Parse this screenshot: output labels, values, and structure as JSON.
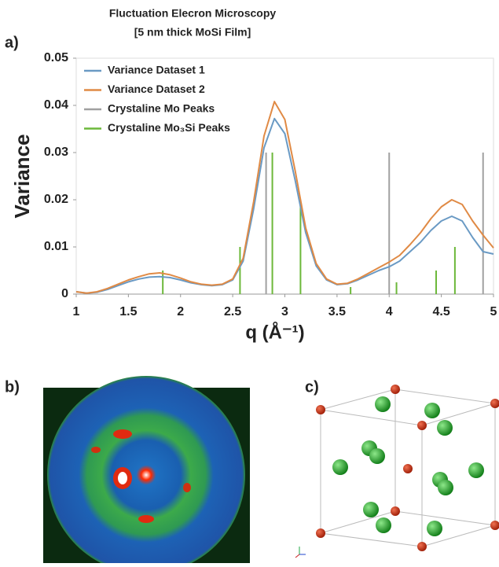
{
  "panel_labels": [
    "a)",
    "b)",
    "c)"
  ],
  "chart_data": {
    "type": "line",
    "title": [
      "Fluctuation Elecron Microscopy",
      "[5 nm thick MoSi Film]"
    ],
    "x_label": "q (Å⁻¹)",
    "y_label": "Variance",
    "xlim": [
      1,
      5
    ],
    "xticks": [
      1,
      1.5,
      2,
      2.5,
      3,
      3.5,
      4,
      4.5,
      5
    ],
    "ylim": [
      0,
      0.05
    ],
    "yticks": [
      0,
      0.01,
      0.02,
      0.03,
      0.04,
      0.05
    ],
    "legend": "upper left",
    "series": [
      {
        "name": "Variance Dataset 1",
        "color": "#6a9ac4",
        "style": "line",
        "x": [
          1.0,
          1.1,
          1.2,
          1.3,
          1.4,
          1.5,
          1.6,
          1.7,
          1.8,
          1.9,
          2.0,
          2.1,
          2.2,
          2.3,
          2.4,
          2.5,
          2.6,
          2.7,
          2.8,
          2.9,
          3.0,
          3.1,
          3.2,
          3.3,
          3.4,
          3.5,
          3.6,
          3.7,
          3.8,
          3.9,
          4.0,
          4.1,
          4.2,
          4.3,
          4.4,
          4.5,
          4.6,
          4.7,
          4.8,
          4.9,
          5.0
        ],
        "values": [
          0.0005,
          0.0002,
          0.0004,
          0.001,
          0.0018,
          0.0026,
          0.0032,
          0.0036,
          0.0037,
          0.0035,
          0.003,
          0.0024,
          0.002,
          0.0018,
          0.002,
          0.003,
          0.007,
          0.018,
          0.031,
          0.0372,
          0.034,
          0.024,
          0.013,
          0.006,
          0.003,
          0.002,
          0.0022,
          0.003,
          0.004,
          0.005,
          0.0058,
          0.007,
          0.009,
          0.011,
          0.0135,
          0.0155,
          0.0165,
          0.0155,
          0.012,
          0.009,
          0.0085
        ]
      },
      {
        "name": "Variance Dataset 2",
        "color": "#e08a45",
        "style": "line",
        "x": [
          1.0,
          1.1,
          1.2,
          1.3,
          1.4,
          1.5,
          1.6,
          1.7,
          1.8,
          1.9,
          2.0,
          2.1,
          2.2,
          2.3,
          2.4,
          2.5,
          2.6,
          2.7,
          2.8,
          2.9,
          3.0,
          3.1,
          3.2,
          3.3,
          3.4,
          3.5,
          3.6,
          3.7,
          3.8,
          3.9,
          4.0,
          4.1,
          4.2,
          4.3,
          4.4,
          4.5,
          4.6,
          4.7,
          4.8,
          4.9,
          5.0
        ],
        "values": [
          0.0005,
          0.0002,
          0.0005,
          0.0012,
          0.0021,
          0.003,
          0.0037,
          0.0043,
          0.0045,
          0.0041,
          0.0034,
          0.0026,
          0.0021,
          0.0019,
          0.0021,
          0.0032,
          0.0076,
          0.0195,
          0.0335,
          0.0408,
          0.037,
          0.026,
          0.014,
          0.0065,
          0.0032,
          0.0021,
          0.0023,
          0.0032,
          0.0044,
          0.0056,
          0.0068,
          0.0082,
          0.0105,
          0.013,
          0.016,
          0.0185,
          0.02,
          0.019,
          0.0155,
          0.0125,
          0.0098
        ]
      },
      {
        "name": "Crystaline Mo Peaks",
        "color": "#a0a0a0",
        "style": "stem",
        "x": [
          2.82,
          4.0,
          4.9
        ],
        "values": [
          0.03,
          0.03,
          0.03
        ]
      },
      {
        "name": "Crystaline Mo₃Si Peaks",
        "color": "#6cb83a",
        "style": "stem",
        "x": [
          1.83,
          2.57,
          2.88,
          3.15,
          3.63,
          4.07,
          4.45,
          4.63
        ],
        "values": [
          0.005,
          0.01,
          0.03,
          0.02,
          0.0015,
          0.0025,
          0.005,
          0.01
        ]
      }
    ]
  }
}
